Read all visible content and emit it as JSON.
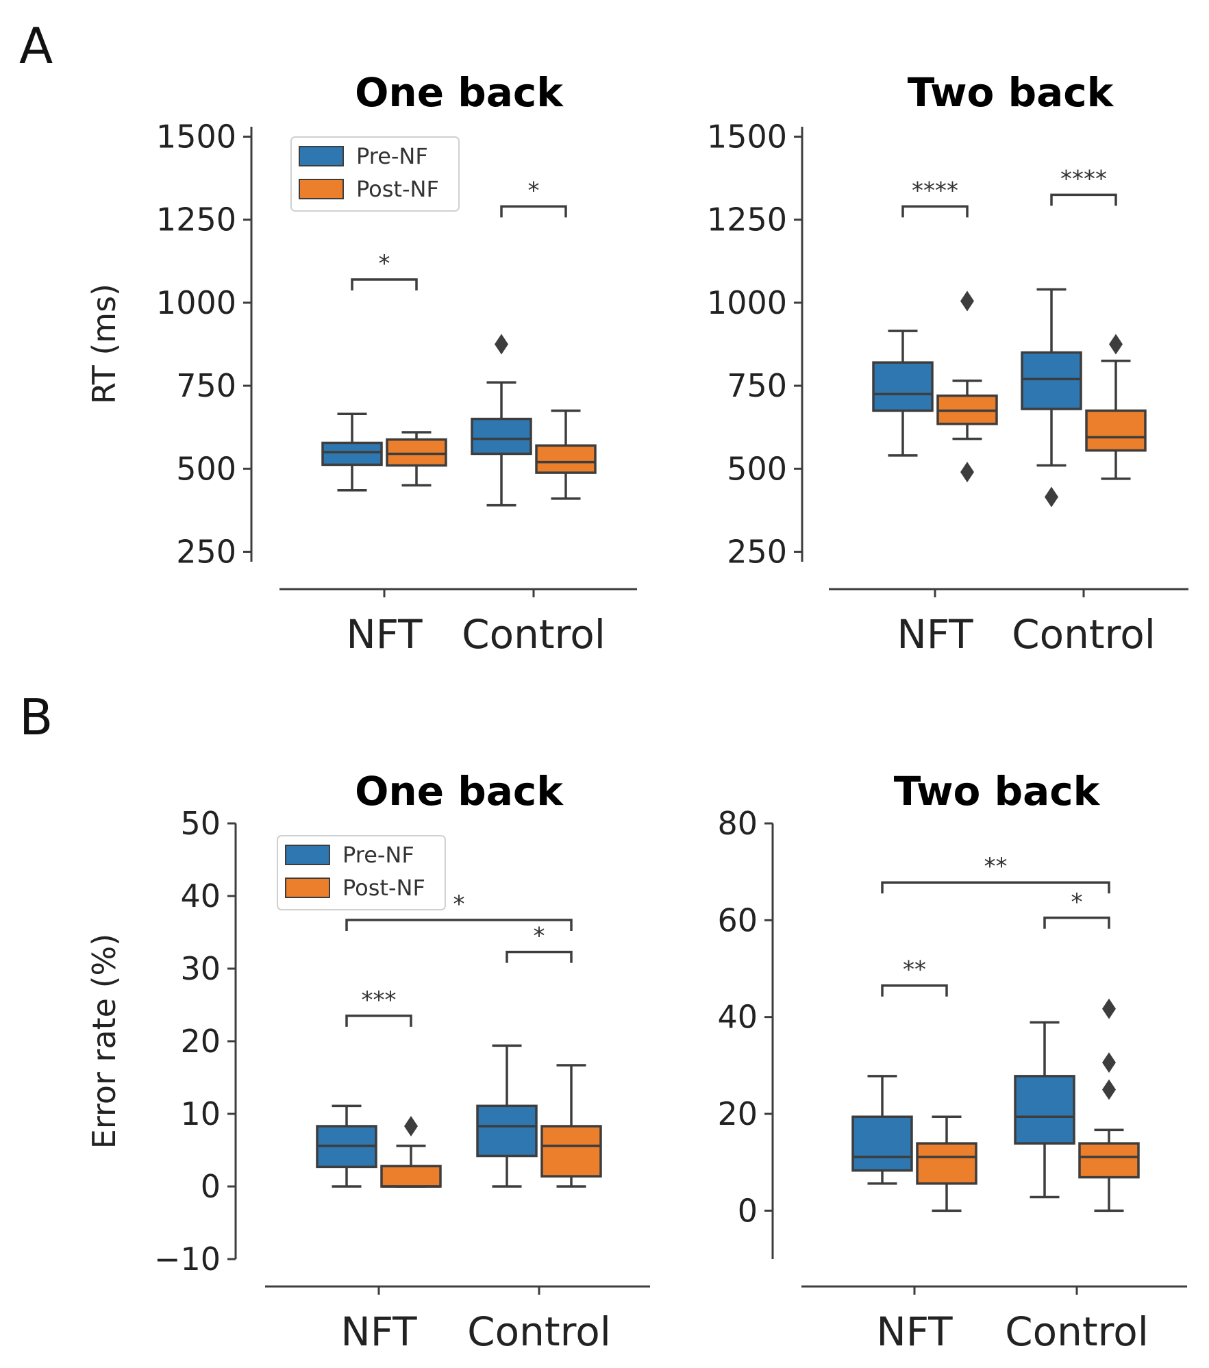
{
  "panels": [
    {
      "letter": "A"
    },
    {
      "letter": "B"
    }
  ],
  "colors": {
    "pre": "#2e77b0",
    "post": "#ec7f2c",
    "line": "#3d3d3d"
  },
  "chart_data": [
    {
      "type": "box",
      "panel": "A",
      "title": "One back",
      "ylabel": "RT (ms)",
      "xlabel": "",
      "ylim": [
        220,
        1530
      ],
      "yticks": [
        250,
        500,
        750,
        1000,
        1250,
        1500
      ],
      "categories": [
        "NFT",
        "Control"
      ],
      "legend": {
        "position": "top-left",
        "entries": [
          "Pre-NF",
          "Post-NF"
        ]
      },
      "series": [
        {
          "name": "Pre-NF",
          "boxes": [
            {
              "whislo": 435,
              "q1": 512,
              "med": 550,
              "q3": 578,
              "whishi": 665,
              "fliers": []
            },
            {
              "whislo": 390,
              "q1": 545,
              "med": 590,
              "q3": 650,
              "whishi": 760,
              "fliers": [
                875
              ]
            }
          ]
        },
        {
          "name": "Post-NF",
          "boxes": [
            {
              "whislo": 450,
              "q1": 510,
              "med": 545,
              "q3": 588,
              "whishi": 610,
              "fliers": []
            },
            {
              "whislo": 410,
              "q1": 488,
              "med": 520,
              "q3": 570,
              "whishi": 675,
              "fliers": []
            }
          ]
        }
      ],
      "annotations": [
        {
          "text": "*",
          "from": [
            0,
            0
          ],
          "to": [
            0,
            1
          ],
          "y": 1070
        },
        {
          "text": "*",
          "from": [
            1,
            0
          ],
          "to": [
            1,
            1
          ],
          "y": 1290
        }
      ]
    },
    {
      "type": "box",
      "panel": "A",
      "title": "Two back",
      "ylabel": "",
      "xlabel": "",
      "ylim": [
        220,
        1530
      ],
      "yticks": [
        250,
        500,
        750,
        1000,
        1250,
        1500
      ],
      "categories": [
        "NFT",
        "Control"
      ],
      "series": [
        {
          "name": "Pre-NF",
          "boxes": [
            {
              "whislo": 540,
              "q1": 675,
              "med": 725,
              "q3": 820,
              "whishi": 915,
              "fliers": []
            },
            {
              "whislo": 510,
              "q1": 680,
              "med": 770,
              "q3": 850,
              "whishi": 1040,
              "fliers": [
                415
              ]
            }
          ]
        },
        {
          "name": "Post-NF",
          "boxes": [
            {
              "whislo": 590,
              "q1": 635,
              "med": 675,
              "q3": 720,
              "whishi": 765,
              "fliers": [
                1005,
                490
              ]
            },
            {
              "whislo": 470,
              "q1": 555,
              "med": 595,
              "q3": 675,
              "whishi": 825,
              "fliers": [
                875
              ]
            }
          ]
        }
      ],
      "annotations": [
        {
          "text": "****",
          "from": [
            0,
            0
          ],
          "to": [
            0,
            1
          ],
          "y": 1290
        },
        {
          "text": "****",
          "from": [
            1,
            0
          ],
          "to": [
            1,
            1
          ],
          "y": 1325
        }
      ]
    },
    {
      "type": "box",
      "panel": "B",
      "title": "One back",
      "ylabel": "Error rate (%)",
      "xlabel": "",
      "ylim": [
        -10,
        50
      ],
      "yticks": [
        -10,
        0,
        10,
        20,
        30,
        40,
        50
      ],
      "categories": [
        "NFT",
        "Control"
      ],
      "legend": {
        "position": "top-left",
        "entries": [
          "Pre-NF",
          "Post-NF"
        ]
      },
      "series": [
        {
          "name": "Pre-NF",
          "boxes": [
            {
              "whislo": 0,
              "q1": 2.7,
              "med": 5.6,
              "q3": 8.3,
              "whishi": 11.1,
              "fliers": []
            },
            {
              "whislo": 0,
              "q1": 4.2,
              "med": 8.3,
              "q3": 11.1,
              "whishi": 19.4,
              "fliers": []
            }
          ]
        },
        {
          "name": "Post-NF",
          "boxes": [
            {
              "whislo": 0,
              "q1": 0,
              "med": 0,
              "q3": 2.8,
              "whishi": 5.6,
              "fliers": [
                8.3
              ]
            },
            {
              "whislo": 0,
              "q1": 1.4,
              "med": 5.6,
              "q3": 8.3,
              "whishi": 16.7,
              "fliers": []
            }
          ]
        }
      ],
      "annotations": [
        {
          "text": "***",
          "from": [
            0,
            0
          ],
          "to": [
            0,
            1
          ],
          "y": 23.5
        },
        {
          "text": "*",
          "from": [
            1,
            0
          ],
          "to": [
            1,
            1
          ],
          "y": 32.3
        },
        {
          "text": "*",
          "from": [
            0,
            0
          ],
          "to": [
            1,
            1
          ],
          "y": 36.7
        }
      ]
    },
    {
      "type": "box",
      "panel": "B",
      "title": "Two back",
      "ylabel": "",
      "xlabel": "",
      "ylim": [
        -10,
        80
      ],
      "yticks": [
        0,
        20,
        40,
        60,
        80
      ],
      "categories": [
        "NFT",
        "Control"
      ],
      "series": [
        {
          "name": "Pre-NF",
          "boxes": [
            {
              "whislo": 5.6,
              "q1": 8.3,
              "med": 11.1,
              "q3": 19.4,
              "whishi": 27.8,
              "fliers": []
            },
            {
              "whislo": 2.8,
              "q1": 13.9,
              "med": 19.4,
              "q3": 27.8,
              "whishi": 38.9,
              "fliers": []
            }
          ]
        },
        {
          "name": "Post-NF",
          "boxes": [
            {
              "whislo": 0,
              "q1": 5.6,
              "med": 11.1,
              "q3": 13.9,
              "whishi": 19.4,
              "fliers": []
            },
            {
              "whislo": 0,
              "q1": 6.9,
              "med": 11.1,
              "q3": 13.9,
              "whishi": 16.7,
              "fliers": [
                41.7,
                30.6,
                25.0
              ]
            }
          ]
        }
      ],
      "annotations": [
        {
          "text": "**",
          "from": [
            0,
            0
          ],
          "to": [
            0,
            1
          ],
          "y": 46.5
        },
        {
          "text": "*",
          "from": [
            1,
            0
          ],
          "to": [
            1,
            1
          ],
          "y": 60.5
        },
        {
          "text": "**",
          "from": [
            0,
            0
          ],
          "to": [
            1,
            1
          ],
          "y": 67.8
        }
      ]
    }
  ]
}
